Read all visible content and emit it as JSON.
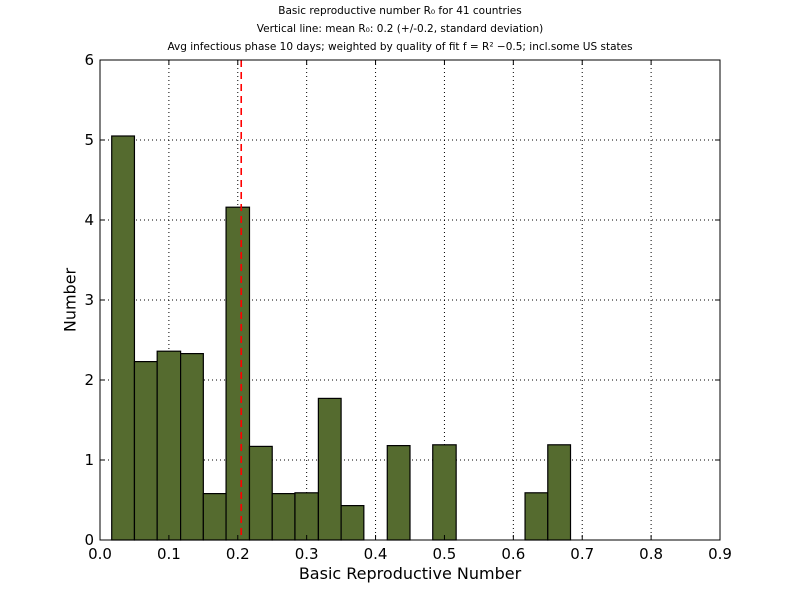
{
  "chart_data": {
    "type": "bar",
    "title_lines": [
      "Basic reproductive number R₀ for 41 countries",
      "Vertical line: mean R₀: 0.2 (+/-0.2, standard deviation)",
      "Avg infectious phase 10 days; weighted by quality of fit f = R² −0.5; incl.some US states"
    ],
    "xlabel": "Basic Reproductive Number",
    "ylabel": "Number",
    "xlim": [
      0.0,
      0.9
    ],
    "ylim": [
      0,
      6
    ],
    "xticks": [
      "0.0",
      "0.1",
      "0.2",
      "0.3",
      "0.4",
      "0.5",
      "0.6",
      "0.7",
      "0.8",
      "0.9"
    ],
    "yticks": [
      "0",
      "1",
      "2",
      "3",
      "4",
      "5",
      "6"
    ],
    "grid": true,
    "bar_color": "#556b2f",
    "bars": [
      {
        "x0": 0.017,
        "x1": 0.05,
        "value": 5.05
      },
      {
        "x0": 0.05,
        "x1": 0.083,
        "value": 2.23
      },
      {
        "x0": 0.083,
        "x1": 0.117,
        "value": 2.36
      },
      {
        "x0": 0.117,
        "x1": 0.15,
        "value": 2.33
      },
      {
        "x0": 0.15,
        "x1": 0.183,
        "value": 0.58
      },
      {
        "x0": 0.183,
        "x1": 0.217,
        "value": 4.16
      },
      {
        "x0": 0.217,
        "x1": 0.25,
        "value": 1.17
      },
      {
        "x0": 0.25,
        "x1": 0.283,
        "value": 0.58
      },
      {
        "x0": 0.283,
        "x1": 0.317,
        "value": 0.59
      },
      {
        "x0": 0.317,
        "x1": 0.35,
        "value": 1.77
      },
      {
        "x0": 0.35,
        "x1": 0.383,
        "value": 0.43
      },
      {
        "x0": 0.417,
        "x1": 0.45,
        "value": 1.18
      },
      {
        "x0": 0.483,
        "x1": 0.517,
        "value": 1.19
      },
      {
        "x0": 0.617,
        "x1": 0.65,
        "value": 0.59
      },
      {
        "x0": 0.65,
        "x1": 0.683,
        "value": 1.19
      }
    ],
    "mean_line": {
      "x": 0.205,
      "color": "#ff0000",
      "style": "dashed"
    }
  }
}
